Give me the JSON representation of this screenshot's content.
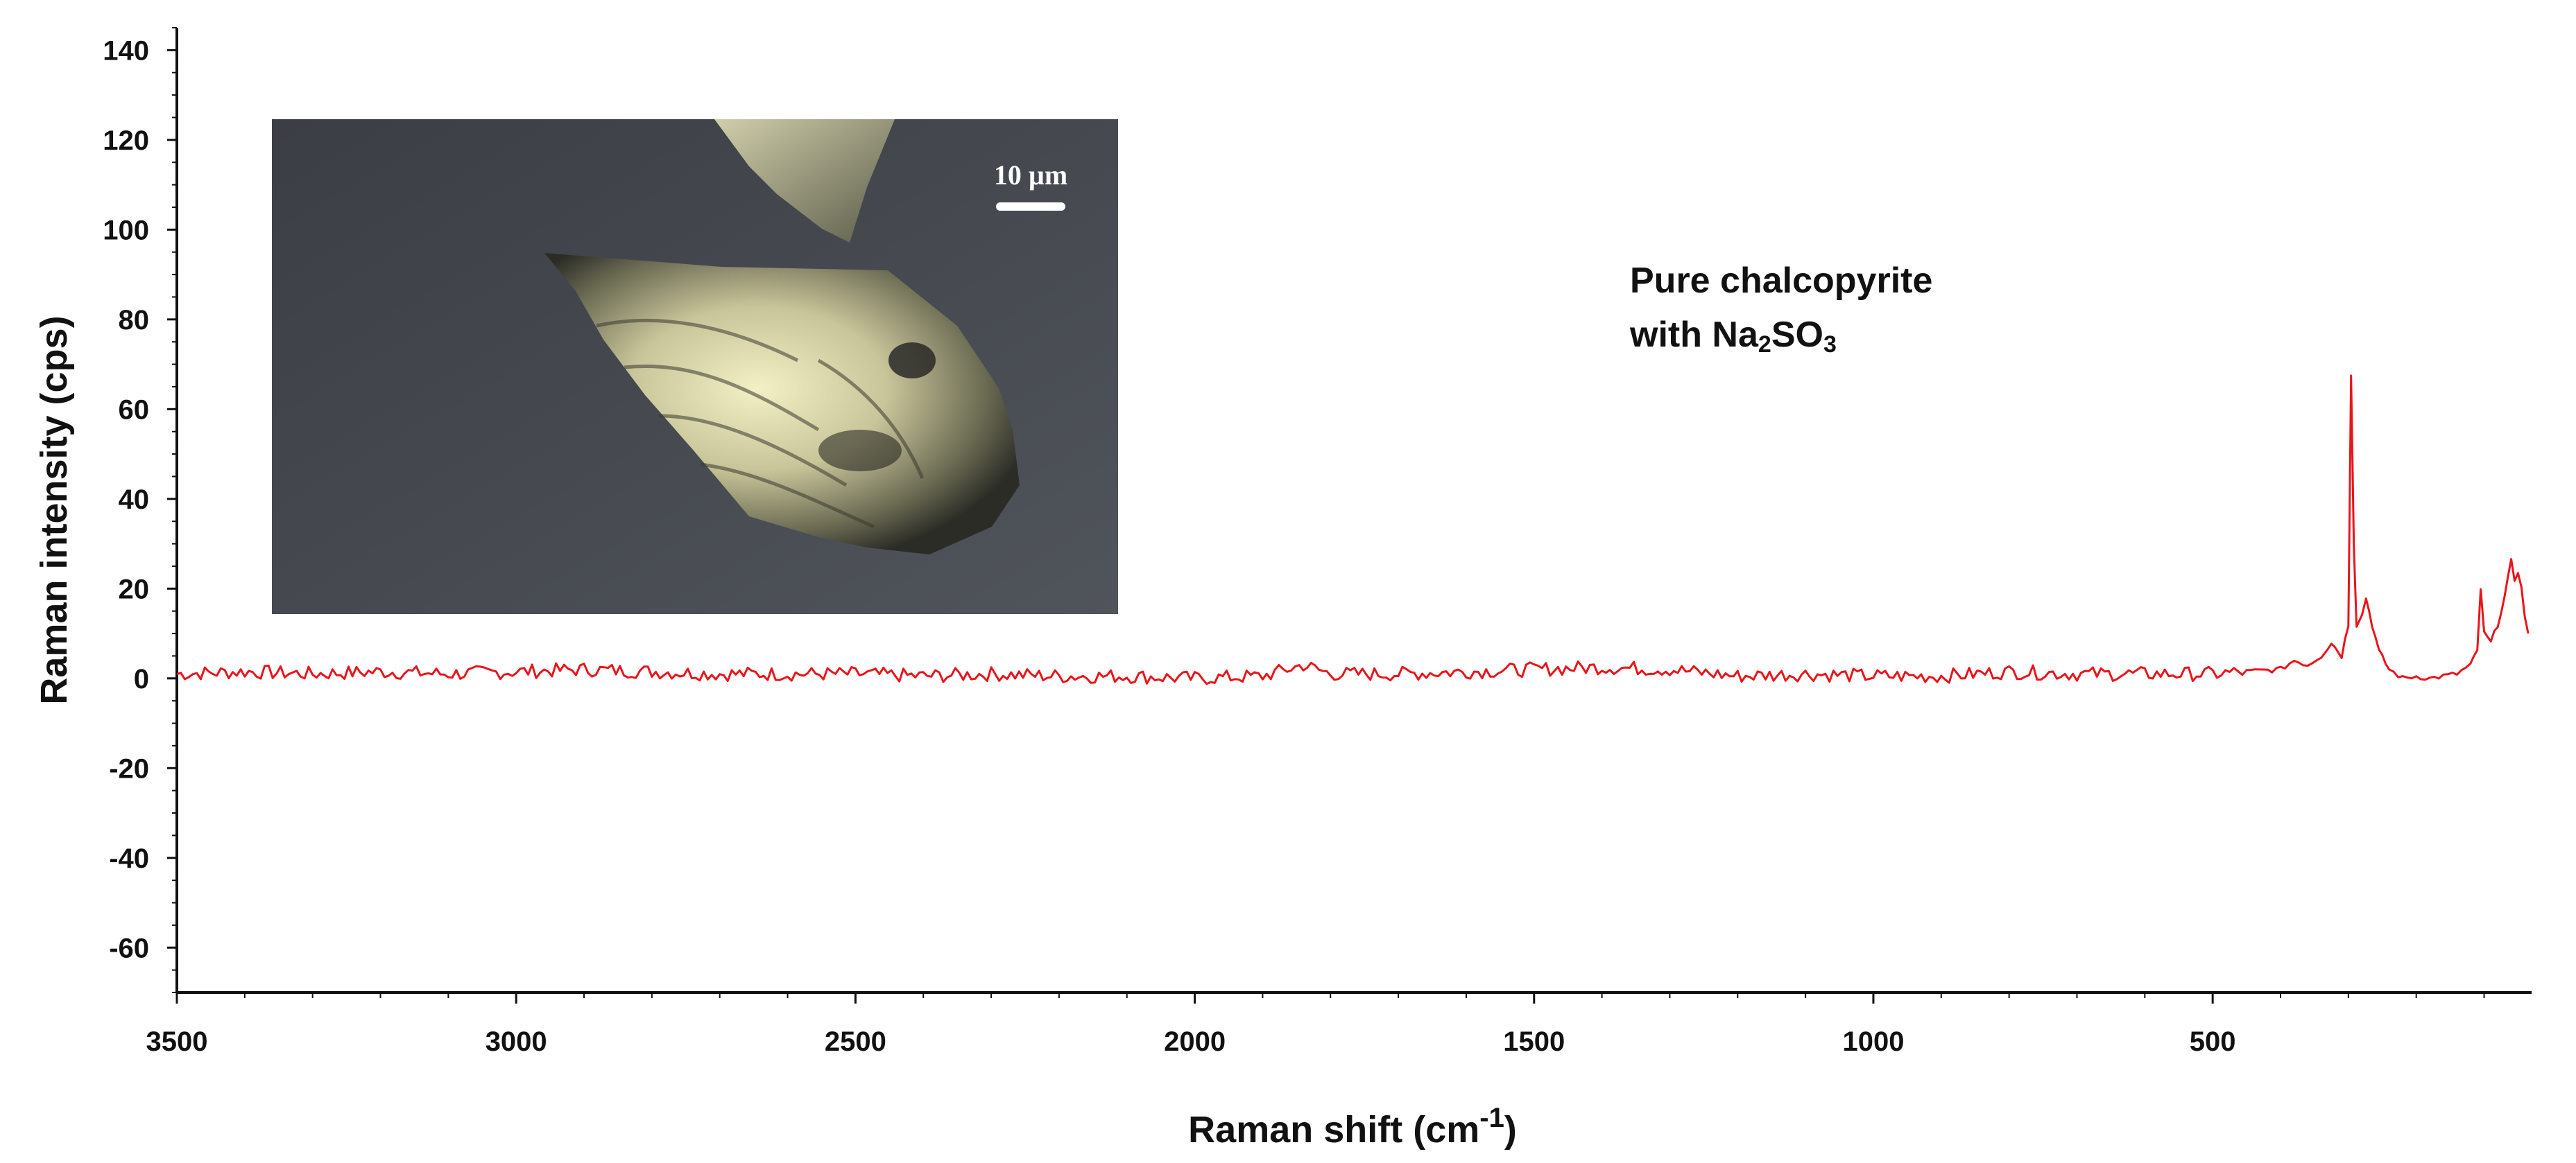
{
  "chart_data": {
    "type": "line",
    "xlabel_main": "Raman shift (cm",
    "xlabel_sup": "-1",
    "xlabel_close": ")",
    "ylabel": "Raman intensity (cps)",
    "xlim": [
      3500,
      30
    ],
    "ylim": [
      -70,
      145
    ],
    "x_ticks": [
      3500,
      3000,
      2500,
      2000,
      1500,
      1000,
      500
    ],
    "x_tick_labels": [
      "3500",
      "3000",
      "2500",
      "2000",
      "1500",
      "1000",
      "500"
    ],
    "y_ticks": [
      140,
      120,
      100,
      80,
      60,
      40,
      20,
      0,
      -20,
      -40,
      -60
    ],
    "y_tick_labels": [
      "140",
      "120",
      "100",
      "80",
      "60",
      "40",
      "20",
      "0",
      "-20",
      "-40",
      "-60"
    ],
    "grid": false,
    "annotation_line1": "Pure chalcopyrite",
    "annotation_line2_prefix": "with Na",
    "annotation_sub1": "2",
    "annotation_mid": "SO",
    "annotation_sub2": "3",
    "inset_scale_label": "10 µm",
    "series": [
      {
        "color": "#e8151b",
        "points": [
          [
            3500,
            1
          ],
          [
            3400,
            1.5
          ],
          [
            3300,
            1
          ],
          [
            3200,
            1.5
          ],
          [
            3100,
            1
          ],
          [
            3000,
            1.5
          ],
          [
            2900,
            2
          ],
          [
            2800,
            1.5
          ],
          [
            2700,
            1
          ],
          [
            2600,
            1
          ],
          [
            2500,
            1
          ],
          [
            2400,
            0.5
          ],
          [
            2300,
            1
          ],
          [
            2200,
            0.5
          ],
          [
            2100,
            0.5
          ],
          [
            2000,
            0
          ],
          [
            1900,
            0.5
          ],
          [
            1840,
            3
          ],
          [
            1800,
            1
          ],
          [
            1700,
            1
          ],
          [
            1600,
            1.5
          ],
          [
            1500,
            2
          ],
          [
            1400,
            2.5
          ],
          [
            1300,
            2
          ],
          [
            1200,
            0.5
          ],
          [
            1100,
            1
          ],
          [
            1000,
            0.5
          ],
          [
            900,
            0.5
          ],
          [
            800,
            1.5
          ],
          [
            700,
            1
          ],
          [
            600,
            1
          ],
          [
            500,
            1
          ],
          [
            450,
            1.5
          ],
          [
            400,
            2
          ],
          [
            380,
            4
          ],
          [
            360,
            3
          ],
          [
            340,
            5
          ],
          [
            325,
            8
          ],
          [
            310,
            5
          ],
          [
            300,
            12
          ],
          [
            296,
            68
          ],
          [
            292,
            30
          ],
          [
            288,
            12
          ],
          [
            280,
            14
          ],
          [
            274,
            18
          ],
          [
            265,
            12
          ],
          [
            255,
            6
          ],
          [
            240,
            2
          ],
          [
            220,
            0
          ],
          [
            200,
            0.5
          ],
          [
            180,
            0
          ],
          [
            160,
            0.5
          ],
          [
            140,
            1
          ],
          [
            120,
            3
          ],
          [
            110,
            6
          ],
          [
            105,
            20
          ],
          [
            100,
            10
          ],
          [
            90,
            8
          ],
          [
            80,
            12
          ],
          [
            70,
            18
          ],
          [
            60,
            26
          ],
          [
            55,
            22
          ],
          [
            50,
            24
          ],
          [
            45,
            20
          ],
          [
            40,
            14
          ],
          [
            35,
            10
          ]
        ]
      }
    ],
    "colors": {
      "axis": "#111111",
      "line": "#e8151b"
    }
  }
}
